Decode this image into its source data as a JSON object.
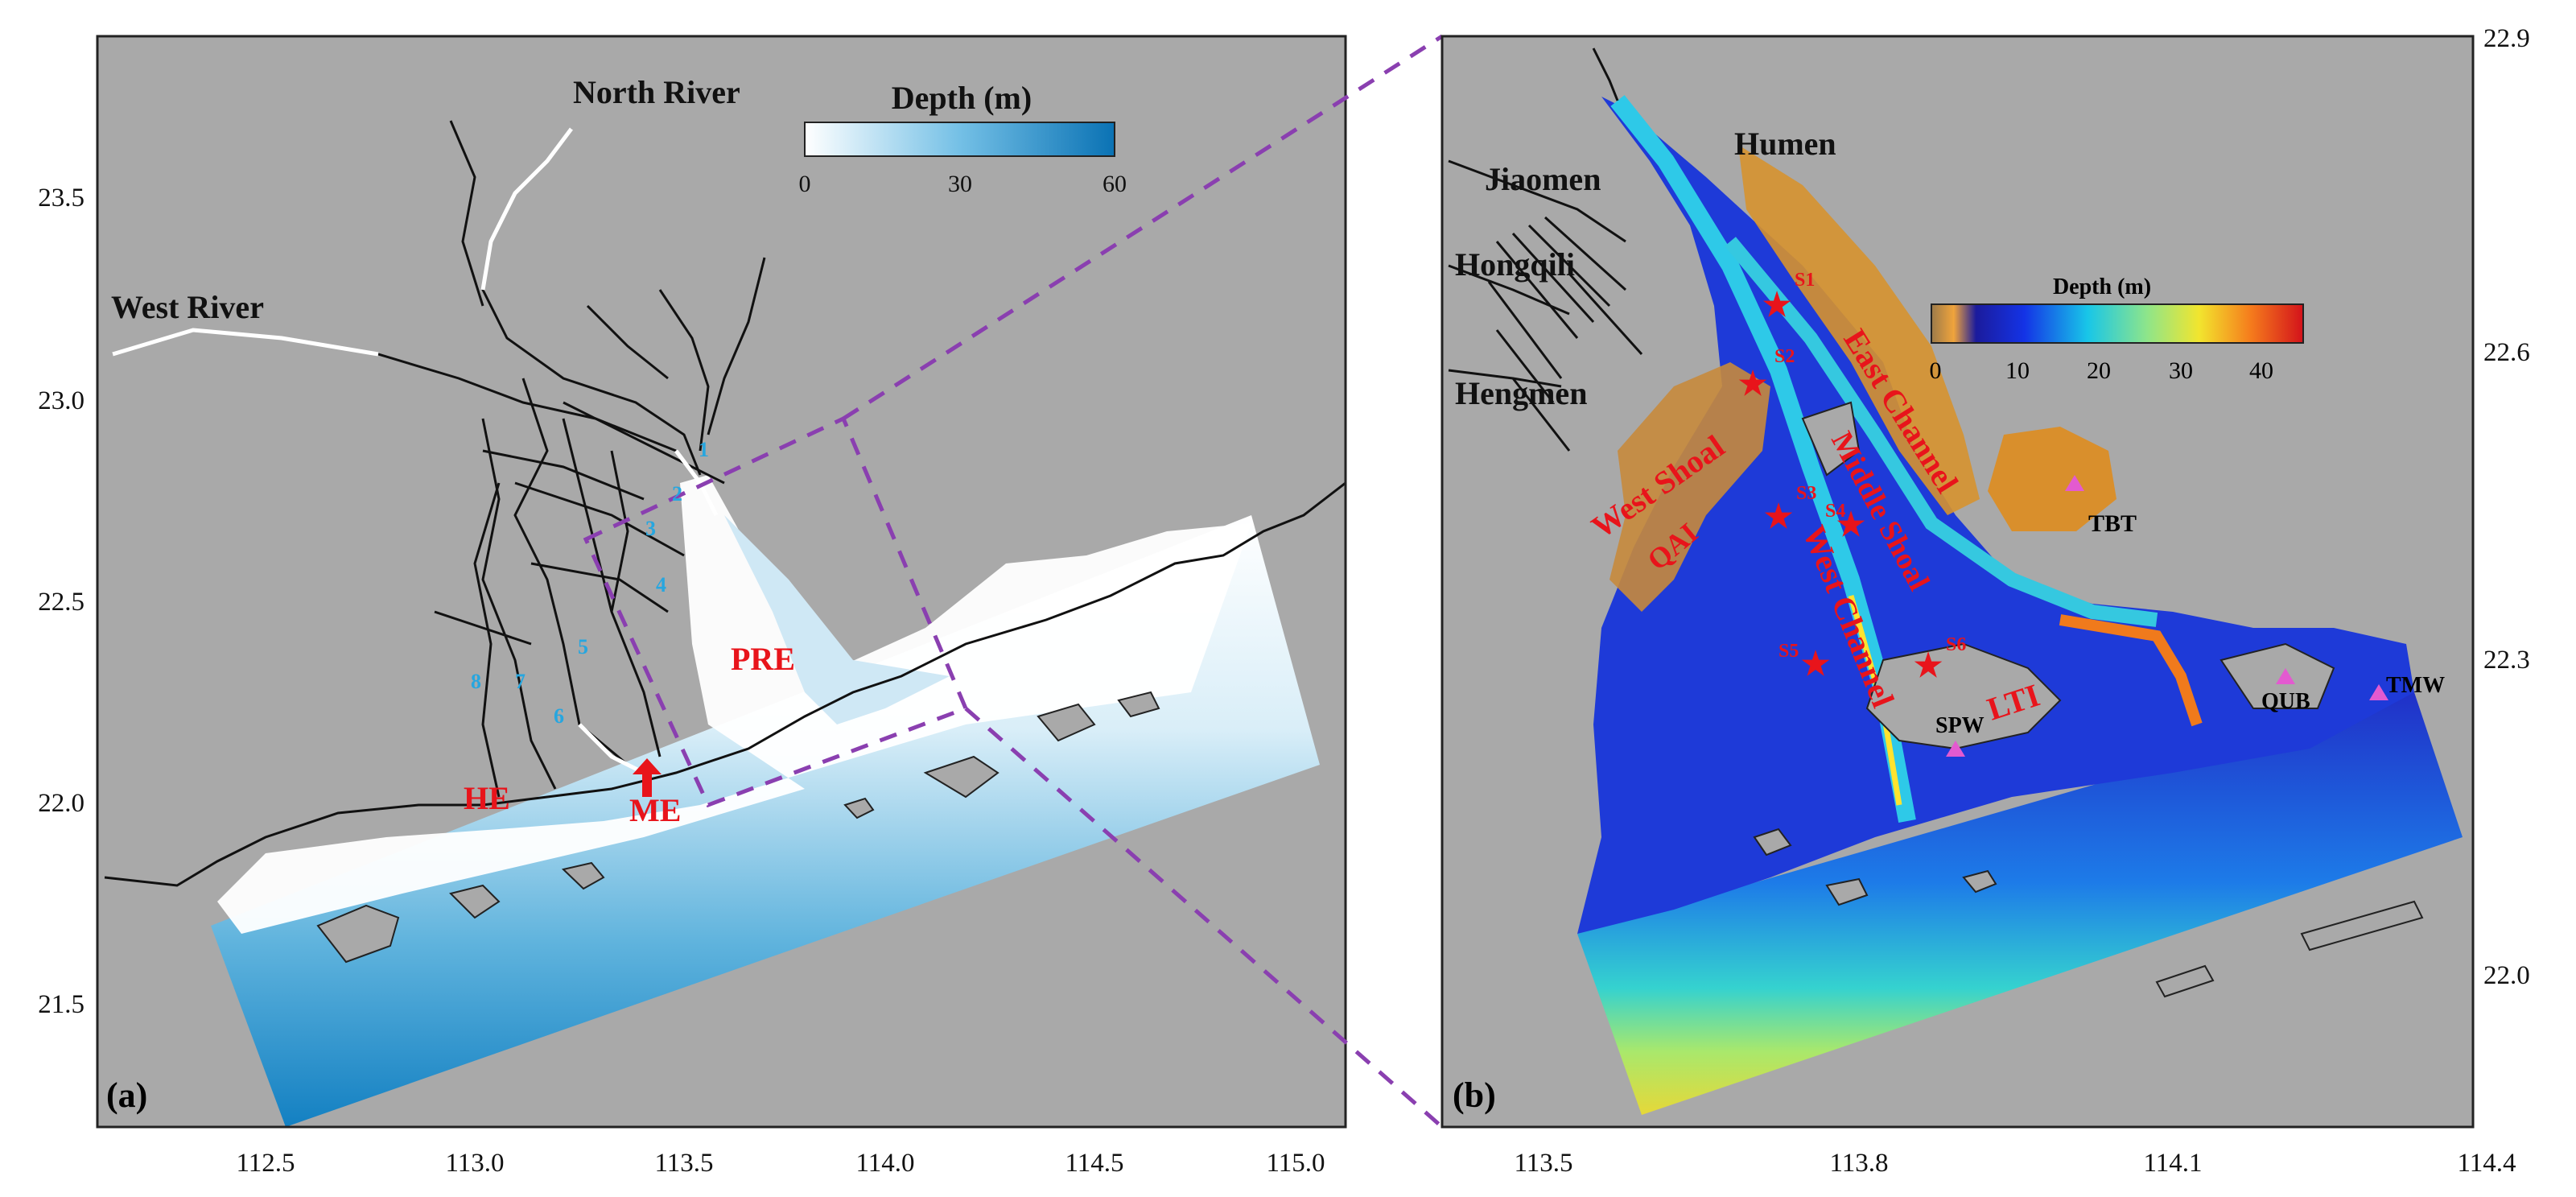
{
  "panel_a": {
    "label": "(a)",
    "x_ticks": [
      "112.5",
      "113.0",
      "113.5",
      "114.0",
      "114.5",
      "115.0"
    ],
    "y_ticks": [
      "23.5",
      "23.0",
      "22.5",
      "22.0",
      "21.5"
    ],
    "colorbar": {
      "title": "Depth (m)",
      "ticks": [
        "0",
        "30",
        "60"
      ]
    },
    "places": {
      "north_river": "North River",
      "west_river": "West River",
      "pre": "PRE",
      "he": "HE",
      "me": "ME"
    },
    "outlets": [
      "1",
      "2",
      "3",
      "4",
      "5",
      "6",
      "7",
      "8"
    ]
  },
  "panel_b": {
    "label": "(b)",
    "x_ticks": [
      "113.5",
      "113.8",
      "114.1",
      "114.4"
    ],
    "y_ticks": [
      "22.9",
      "22.6",
      "22.3",
      "22.0"
    ],
    "colorbar": {
      "title": "Depth (m)",
      "ticks": [
        "0",
        "10",
        "20",
        "30",
        "40"
      ]
    },
    "places": {
      "humen": "Humen",
      "jiaomen": "Jiaomen",
      "hongqili": "Hongqili",
      "hengmen": "Hengmen",
      "tbt": "TBT",
      "spw": "SPW",
      "qub": "QUB",
      "tmw": "TMW",
      "lti": "LTI",
      "west_shoal": "West Shoal",
      "qai": "QAI",
      "middle_shoal": "Middle Shoal",
      "east_channel": "East Channel",
      "west_channel": "West Channel"
    },
    "stations": [
      "S1",
      "S2",
      "S3",
      "S4",
      "S5",
      "S6"
    ]
  },
  "colors": {
    "land": "#a9a9a9",
    "depth_shallow": "#ffffff",
    "depth_deep": "#0a72b4",
    "label_red": "#e8141b",
    "outlet_blue": "#27a6df",
    "zoom_box": "#8a3fb0"
  }
}
